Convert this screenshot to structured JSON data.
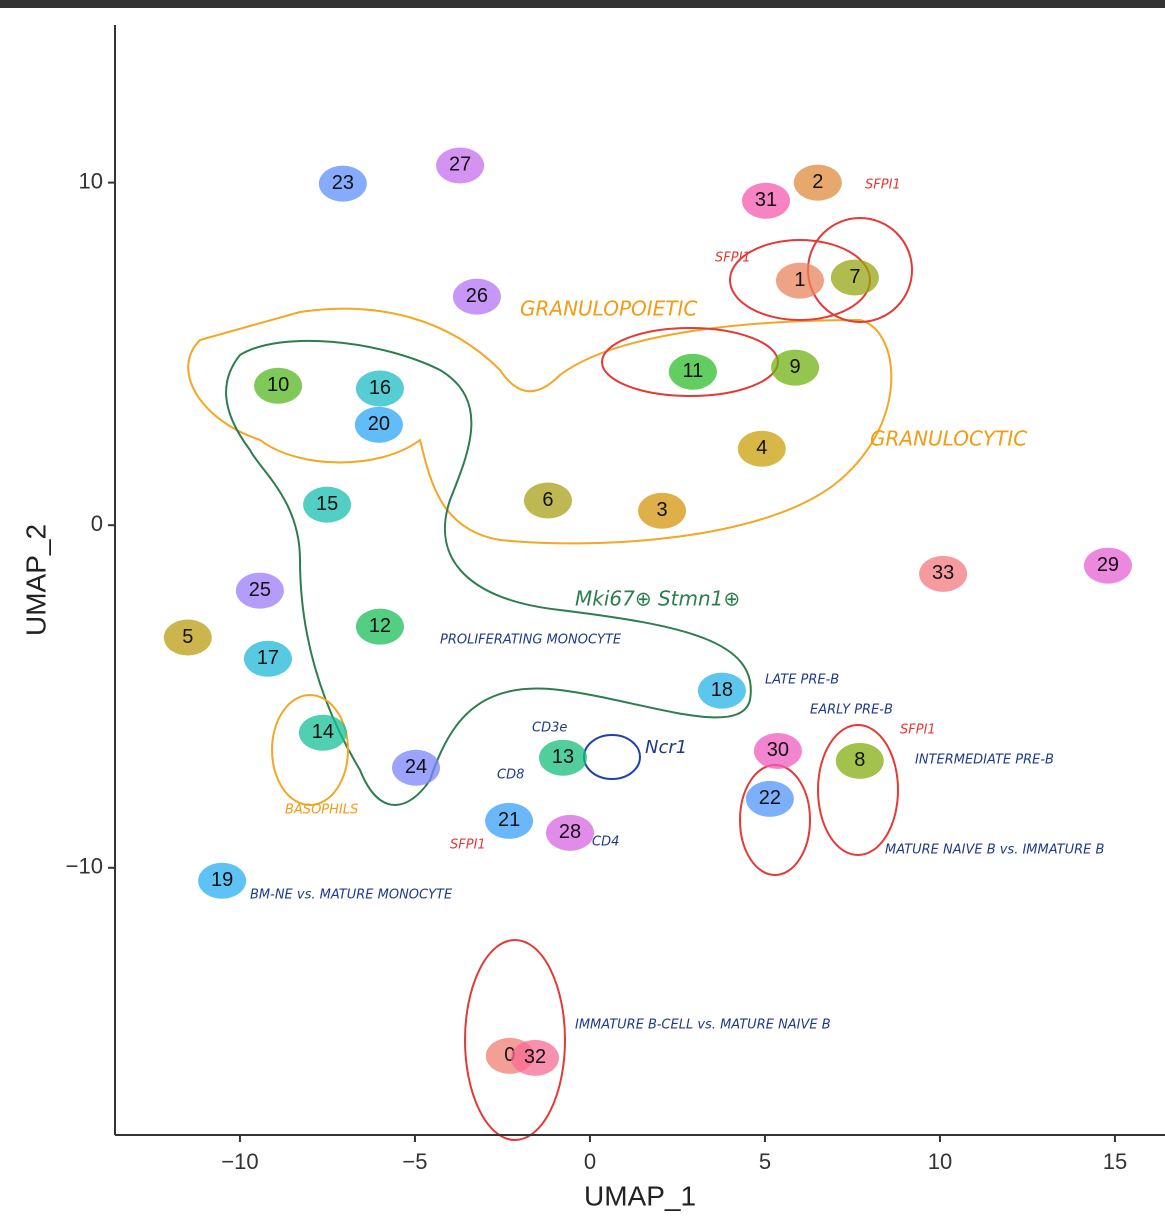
{
  "chart_data": {
    "type": "scatter",
    "xlabel": "UMAP_1",
    "ylabel": "UMAP_2",
    "xlim": [
      -13.57,
      16.43
    ],
    "ylim": [
      -17.8,
      14.6
    ],
    "xticks": [
      {
        "value": -10,
        "label": "−10"
      },
      {
        "value": -5,
        "label": "−5"
      },
      0,
      5,
      10,
      15
    ],
    "yticks": [
      {
        "value": -10,
        "label": "−10"
      },
      0,
      10
    ],
    "labels": [
      "0",
      "1",
      "2",
      "3",
      "4",
      "5",
      "6",
      "7",
      "8",
      "9",
      "10",
      "11",
      "12",
      "13",
      "14",
      "15",
      "16",
      "17",
      "18",
      "19",
      "20",
      "21",
      "22",
      "23",
      "24",
      "25",
      "26",
      "27",
      "28",
      "29",
      "30",
      "31",
      "32",
      "33"
    ],
    "x": [
      -2.29,
      6.0,
      6.51,
      2.06,
      4.91,
      -11.49,
      -1.2,
      7.57,
      7.71,
      5.86,
      -8.91,
      2.94,
      -6.0,
      -0.77,
      -7.63,
      -7.51,
      -6.0,
      -9.2,
      3.77,
      -10.51,
      -6.03,
      -2.31,
      5.14,
      -7.06,
      -4.97,
      -9.43,
      -3.23,
      -3.71,
      -0.57,
      14.8,
      5.37,
      5.03,
      -1.57,
      10.09
    ],
    "y": [
      -15.49,
      7.14,
      10.0,
      0.42,
      2.23,
      -3.28,
      0.72,
      7.23,
      -6.88,
      4.6,
      4.07,
      4.48,
      -2.96,
      -6.79,
      -6.06,
      0.6,
      3.99,
      -3.9,
      -4.83,
      -10.38,
      2.93,
      -8.63,
      -7.99,
      9.97,
      -7.08,
      -1.91,
      6.67,
      10.5,
      -8.98,
      -1.18,
      -6.59,
      9.47,
      -15.55,
      -1.42
    ],
    "colors": [
      "#f07f72",
      "#e8835e",
      "#de8b3c",
      "#d4960e",
      "#c9a00a",
      "#b99c10",
      "#a9a018",
      "#96a613",
      "#84ad0f",
      "#6fb214",
      "#56b520",
      "#2ebc2c",
      "#1bbd5a",
      "#16be7b",
      "#15bf97",
      "#19beb0",
      "#1cbcc4",
      "#1fb8d8",
      "#25b3e6",
      "#2aaef0",
      "#2ca6f6",
      "#3a9ffa",
      "#5096fc",
      "#5e8ffc",
      "#7a84fb",
      "#9a7bf8",
      "#b374f3",
      "#c66ded",
      "#d865e1",
      "#e560d1",
      "#ef5cc0",
      "#f55aad",
      "#f86b96",
      "#f27a80"
    ],
    "annotations": [
      "GRANULOPOIETIC",
      "GRANULOCYTIC",
      "Mki67⊕ Stmn1⊕",
      "LATE PRE-B",
      "EARLY PRE-B",
      "INTERMEDIATE PRE-B",
      "MATURE NAIVE B vs. IMMATURE B",
      "IMMATURE B-CELL vs. MATURE NAIVE B",
      "PROLIFERATING MONOCYTE",
      "BASOPHILS",
      "SFPI1",
      "SFPI1",
      "SFPI1",
      "SFPI1",
      "Ncr1",
      "CD3e",
      "CD8",
      "CD4",
      "BM-NE vs. MATURE MONOCYTE"
    ]
  }
}
